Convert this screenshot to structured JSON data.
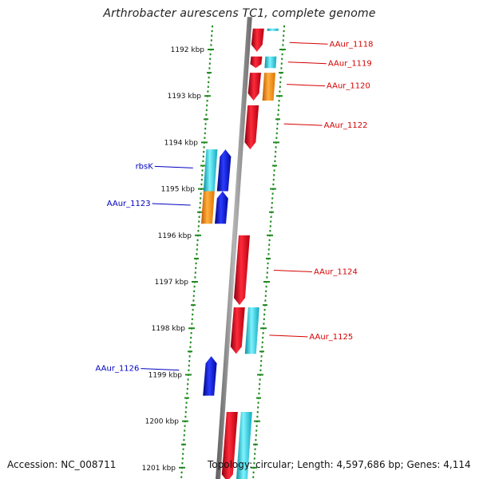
{
  "title": "Arthrobacter aurescens TC1, complete genome",
  "footer": {
    "accession": "Accession: NC_008711",
    "topology": "Topology: circular; Length: 4,597,686 bp; Genes: 4,114"
  },
  "colors": {
    "forward_gene": "#e8001c",
    "reverse_gene": "#0a16d6",
    "cyan_feature": "#1ec8d8",
    "orange_feature": "#ff8a00",
    "label_forward": "#d40000",
    "label_reverse": "#0000c0",
    "tick": "#1f8a1f",
    "backbone": "#888888"
  },
  "axis": {
    "unit": "kbp",
    "ticks": [
      {
        "value": 1192,
        "label": "1192 kbp"
      },
      {
        "value": 1193,
        "label": "1193 kbp"
      },
      {
        "value": 1194,
        "label": "1194 kbp"
      },
      {
        "value": 1195,
        "label": "1195 kbp"
      },
      {
        "value": 1196,
        "label": "1196 kbp"
      },
      {
        "value": 1197,
        "label": "1197 kbp"
      },
      {
        "value": 1198,
        "label": "1198 kbp"
      },
      {
        "value": 1199,
        "label": "1199 kbp"
      },
      {
        "value": 1200,
        "label": "1200 kbp"
      },
      {
        "value": 1201,
        "label": "1201 kbp"
      }
    ]
  },
  "features": [
    {
      "track": "outer1",
      "type": "gene",
      "start": 1191.55,
      "end": 1192.05,
      "color": "forward_gene"
    },
    {
      "track": "outer2",
      "type": "cds",
      "start": 1191.55,
      "end": 1191.6,
      "color": "cyan_feature"
    },
    {
      "track": "outer1",
      "type": "gene",
      "start": 1192.15,
      "end": 1192.4,
      "color": "forward_gene"
    },
    {
      "track": "outer2",
      "type": "cds",
      "start": 1192.15,
      "end": 1192.4,
      "color": "cyan_feature"
    },
    {
      "track": "outer1",
      "type": "gene",
      "start": 1192.5,
      "end": 1193.1,
      "color": "forward_gene"
    },
    {
      "track": "outer2",
      "type": "rna",
      "start": 1192.5,
      "end": 1193.1,
      "color": "orange_feature"
    },
    {
      "track": "outer1",
      "type": "gene",
      "start": 1193.2,
      "end": 1194.15,
      "color": "forward_gene"
    },
    {
      "track": "inner1",
      "type": "gene",
      "start": 1194.15,
      "end": 1195.05,
      "color": "reverse_gene"
    },
    {
      "track": "inner2",
      "type": "cds",
      "start": 1194.15,
      "end": 1195.05,
      "color": "cyan_feature"
    },
    {
      "track": "inner1",
      "type": "gene",
      "start": 1195.05,
      "end": 1195.75,
      "color": "reverse_gene"
    },
    {
      "track": "inner2",
      "type": "rna",
      "start": 1195.05,
      "end": 1195.75,
      "color": "orange_feature"
    },
    {
      "track": "outer1",
      "type": "gene",
      "start": 1196.0,
      "end": 1197.5,
      "color": "forward_gene"
    },
    {
      "track": "outer1",
      "type": "gene",
      "start": 1197.55,
      "end": 1198.55,
      "color": "forward_gene"
    },
    {
      "track": "outer2",
      "type": "cds",
      "start": 1197.55,
      "end": 1198.55,
      "color": "cyan_feature"
    },
    {
      "track": "inner1",
      "type": "gene",
      "start": 1198.6,
      "end": 1199.45,
      "color": "reverse_gene"
    },
    {
      "track": "outer1",
      "type": "gene",
      "start": 1199.8,
      "end": 1201.3,
      "color": "forward_gene"
    },
    {
      "track": "outer2",
      "type": "cds",
      "start": 1199.8,
      "end": 1201.3,
      "color": "cyan_feature"
    }
  ],
  "labels": [
    {
      "text": "AAur_1118",
      "side": "right",
      "position": 1191.85,
      "color": "label_forward"
    },
    {
      "text": "AAur_1119",
      "side": "right",
      "position": 1192.27,
      "color": "label_forward"
    },
    {
      "text": "AAur_1120",
      "side": "right",
      "position": 1192.75,
      "color": "label_forward"
    },
    {
      "text": "AAur_1122",
      "side": "right",
      "position": 1193.6,
      "color": "label_forward"
    },
    {
      "text": "rbsK",
      "side": "left",
      "position": 1194.55,
      "color": "label_reverse"
    },
    {
      "text": "AAur_1123",
      "side": "left",
      "position": 1195.35,
      "color": "label_reverse"
    },
    {
      "text": "AAur_1124",
      "side": "right",
      "position": 1196.75,
      "color": "label_forward"
    },
    {
      "text": "AAur_1125",
      "side": "right",
      "position": 1198.15,
      "color": "label_forward"
    },
    {
      "text": "AAur_1126",
      "side": "left",
      "position": 1198.9,
      "color": "label_reverse"
    }
  ]
}
